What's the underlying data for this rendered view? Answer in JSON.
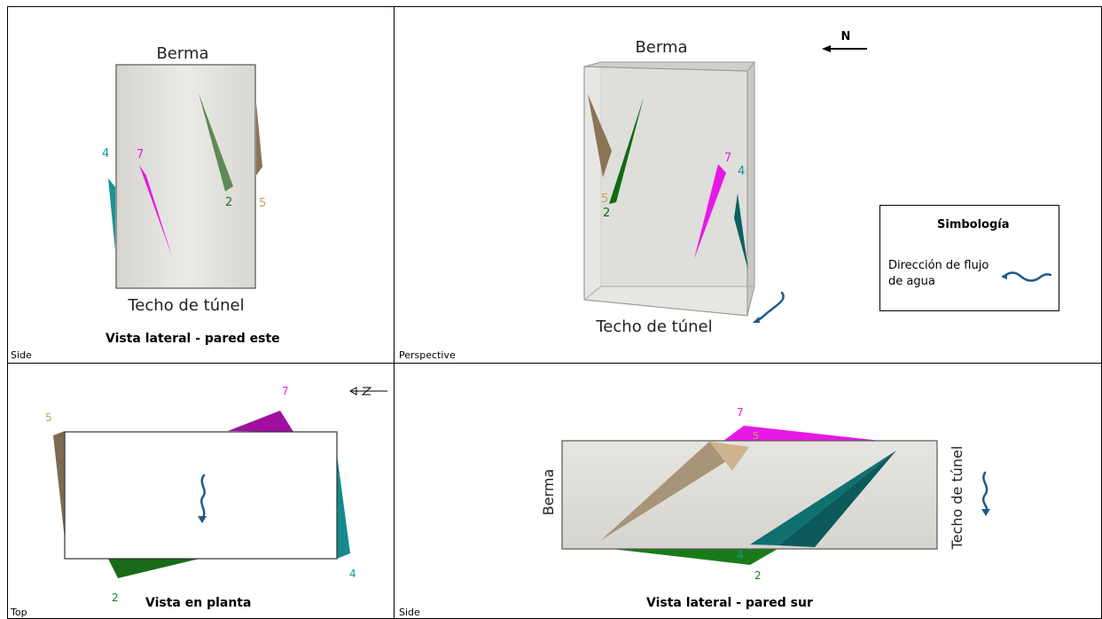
{
  "views": {
    "side_east": {
      "viewport_label": "Side",
      "caption": "Vista lateral - pared este",
      "top_label": "Berma",
      "bottom_label": "Techo de túnel",
      "joint_labels": {
        "j2": "2",
        "j4": "4",
        "j5": "5",
        "j7": "7"
      }
    },
    "perspective": {
      "viewport_label": "Perspective",
      "top_label": "Berma",
      "bottom_label": "Techo de túnel",
      "north_label": "N",
      "joint_labels": {
        "j2": "2",
        "j4": "4",
        "j5": "5",
        "j7": "7"
      }
    },
    "top": {
      "viewport_label": "Top",
      "caption": "Vista en planta",
      "joint_labels": {
        "j2": "2",
        "j4": "4",
        "j5": "5",
        "j7": "7"
      }
    },
    "side_south": {
      "viewport_label": "Side",
      "caption": "Vista lateral - pared sur",
      "left_label": "Berma",
      "right_label": "Techo de túnel",
      "joint_labels": {
        "j2": "2",
        "j4": "4",
        "j5": "5",
        "j7": "7"
      }
    }
  },
  "legend": {
    "title": "Simbología",
    "item_label": "Dirección de flujo de agua",
    "item_icon": "water-flow-icon"
  },
  "colors": {
    "joint_2": "#1a7a1a",
    "joint_4": "#159595",
    "joint_5": "#8b7355",
    "joint_7": "#e619e6",
    "flow": "#1f5a8a",
    "block_fill": "#dedcd7"
  }
}
